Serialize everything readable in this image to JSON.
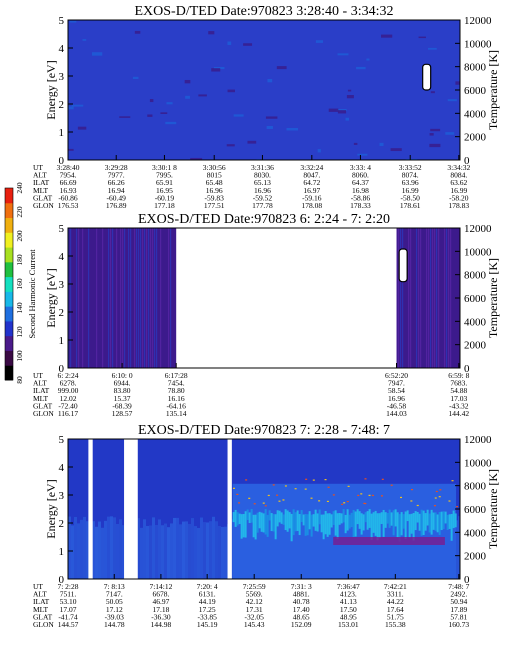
{
  "colorbar": {
    "label": "Second Harmonic Current",
    "ticks": [
      "80",
      "100",
      "120",
      "140",
      "160",
      "180",
      "200",
      "220",
      "240"
    ],
    "range": [
      80,
      240
    ],
    "colors": [
      "#000000",
      "#3a0a44",
      "#4a1a8a",
      "#2233cc",
      "#1f6fe0",
      "#18b8e8",
      "#14e0c0",
      "#20c040",
      "#a8e020",
      "#f0f020",
      "#f0b010",
      "#f07010",
      "#e82010"
    ]
  },
  "chart_data": [
    {
      "type": "heatmap",
      "title": "EXOS-D/TED   Date:970823  3:28:40 - 3:34:32",
      "ylabel": "Energy [eV]",
      "y2label": "Temperature [K]",
      "ylim": [
        0,
        5
      ],
      "y2lim": [
        0,
        12000
      ],
      "yticks": [
        "0",
        "1",
        "2",
        "3",
        "4",
        "5"
      ],
      "y2ticks": [
        "0",
        "2000",
        "4000",
        "6000",
        "8000",
        "10000",
        "12000"
      ],
      "background_color": "#2a3ec8",
      "gaps": [],
      "high_bands": [],
      "temperature_bars": [
        {
          "x": 0.915,
          "t_low": 6000,
          "t_high": 8200
        }
      ],
      "ephemeris": {
        "labels": [
          "UT",
          "ALT",
          "ILAT",
          "MLT",
          "GLAT",
          "GLON"
        ],
        "columns": [
          {
            "x": 0.0,
            "vals": [
              "3:28:40",
              "7954.",
              "66.69",
              "16.93",
              "-60.86",
              "176.53"
            ]
          },
          {
            "x": 0.123,
            "vals": [
              "3:29:28",
              "7977.",
              "66.26",
              "16.94",
              "-60.49",
              "176.89"
            ]
          },
          {
            "x": 0.246,
            "vals": [
              "3:30:1 8",
              "7995.",
              "65.91",
              "16.95",
              "-60.19",
              "177.18"
            ]
          },
          {
            "x": 0.373,
            "vals": [
              "3:30:56",
              "8015",
              "65.48",
              "16.96",
              "-59.83",
              "177.51"
            ]
          },
          {
            "x": 0.496,
            "vals": [
              "3:31:36",
              "8030.",
              "65.13",
              "16.96",
              "-59.52",
              "177.78"
            ]
          },
          {
            "x": 0.622,
            "vals": [
              "3:32:24",
              "8047.",
              "64.72",
              "16.97",
              "-59.16",
              "178.08"
            ]
          },
          {
            "x": 0.746,
            "vals": [
              "3:33: 4",
              "8060.",
              "64.37",
              "16.98",
              "-58.86",
              "178.33"
            ]
          },
          {
            "x": 0.873,
            "vals": [
              "3:33:52",
              "8074.",
              "63.96",
              "16.99",
              "-58.50",
              "178.61"
            ]
          },
          {
            "x": 0.997,
            "vals": [
              "3:34:32",
              "8084.",
              "63.62",
              "16.99",
              "-58.20",
              "178.83"
            ]
          }
        ]
      }
    },
    {
      "type": "heatmap",
      "title": "EXOS-D/TED   Date:970823  6: 2:24 - 7: 2:20",
      "ylabel": "Energy [eV]",
      "y2label": "Temperature [K]",
      "ylim": [
        0,
        5
      ],
      "y2lim": [
        0,
        12000
      ],
      "yticks": [
        "0",
        "1",
        "2",
        "3",
        "4",
        "5"
      ],
      "y2ticks": [
        "0",
        "2000",
        "4000",
        "6000",
        "8000",
        "10000",
        "12000"
      ],
      "background_color": "#3c1a8c",
      "gaps": [
        [
          0.276,
          0.838
        ]
      ],
      "high_bands": [],
      "temperature_bars": [
        {
          "x": 0.855,
          "t_low": 7400,
          "t_high": 10200
        }
      ],
      "ephemeris": {
        "labels": [
          "UT",
          "ALT",
          "ILAT",
          "MLT",
          "GLAT",
          "GLON"
        ],
        "columns": [
          {
            "x": 0.0,
            "vals": [
              "6: 2:24",
              "6278.",
              "999.00",
              "12.02",
              "-72.40",
              "116.17"
            ]
          },
          {
            "x": 0.138,
            "vals": [
              "6:10: 0",
              "6944.",
              "83.80",
              "15.37",
              "-68.39",
              "128.57"
            ]
          },
          {
            "x": 0.276,
            "vals": [
              "6:17:28",
              "7454.",
              "78.80",
              "16.16",
              "-64.16",
              "135.14"
            ]
          },
          {
            "x": 0.838,
            "vals": [
              "6:52:20",
              "7947.",
              "58.54",
              "16.96",
              "-46.58",
              "144.03"
            ]
          },
          {
            "x": 0.997,
            "vals": [
              "6:59: 8",
              "7683.",
              "54.88",
              "17.03",
              "-43.32",
              "144.42"
            ]
          }
        ]
      }
    },
    {
      "type": "heatmap",
      "title": "EXOS-D/TED   Date:970823  7: 2:28 - 7:48: 7",
      "ylabel": "Energy [eV]",
      "y2label": "Temperature [K]",
      "ylim": [
        0,
        5
      ],
      "y2lim": [
        0,
        12000
      ],
      "yticks": [
        "0",
        "1",
        "2",
        "3",
        "4",
        "5"
      ],
      "y2ticks": [
        "0",
        "2000",
        "4000",
        "6000",
        "8000",
        "10000",
        "12000"
      ],
      "background_color": "#2238c6",
      "gaps": [
        [
          0.052,
          0.063
        ],
        [
          0.143,
          0.178
        ],
        [
          0.407,
          0.418
        ]
      ],
      "high_bands": [
        [
          0.42,
          0.99
        ]
      ],
      "temperature_bars": [],
      "ephemeris": {
        "labels": [
          "UT",
          "ALT",
          "ILAT",
          "MLT",
          "GLAT",
          "GLON"
        ],
        "columns": [
          {
            "x": 0.0,
            "vals": [
              "7: 2:28",
              "7511.",
              "53.10",
              "17.07",
              "-41.74",
              "144.57"
            ]
          },
          {
            "x": 0.118,
            "vals": [
              "7: 8:13",
              "7147.",
              "50.05",
              "17.12",
              "-39.03",
              "144.78"
            ]
          },
          {
            "x": 0.237,
            "vals": [
              "7:14:12",
              "6678.",
              "46.97",
              "17.18",
              "-36.30",
              "144.98"
            ]
          },
          {
            "x": 0.355,
            "vals": [
              "7:20: 4",
              "6131.",
              "44.19",
              "17.25",
              "-33.85",
              "145.19"
            ]
          },
          {
            "x": 0.475,
            "vals": [
              "7:25:59",
              "5569.",
              "42.12",
              "17.31",
              "-32.05",
              "145.43"
            ]
          },
          {
            "x": 0.595,
            "vals": [
              "7:31: 3",
              "4881.",
              "40.78",
              "17.40",
              "48.65",
              "152.09"
            ]
          },
          {
            "x": 0.715,
            "vals": [
              "7:36:47",
              "4123.",
              "41.13",
              "17.50",
              "48.95",
              "153.01"
            ]
          },
          {
            "x": 0.835,
            "vals": [
              "7:42:21",
              "3311.",
              "44.22",
              "17.64",
              "51.75",
              "155.38"
            ]
          },
          {
            "x": 0.997,
            "vals": [
              "7:48: 7",
              "2492.",
              "50.94",
              "17.89",
              "57.81",
              "160.73"
            ]
          }
        ]
      }
    }
  ]
}
